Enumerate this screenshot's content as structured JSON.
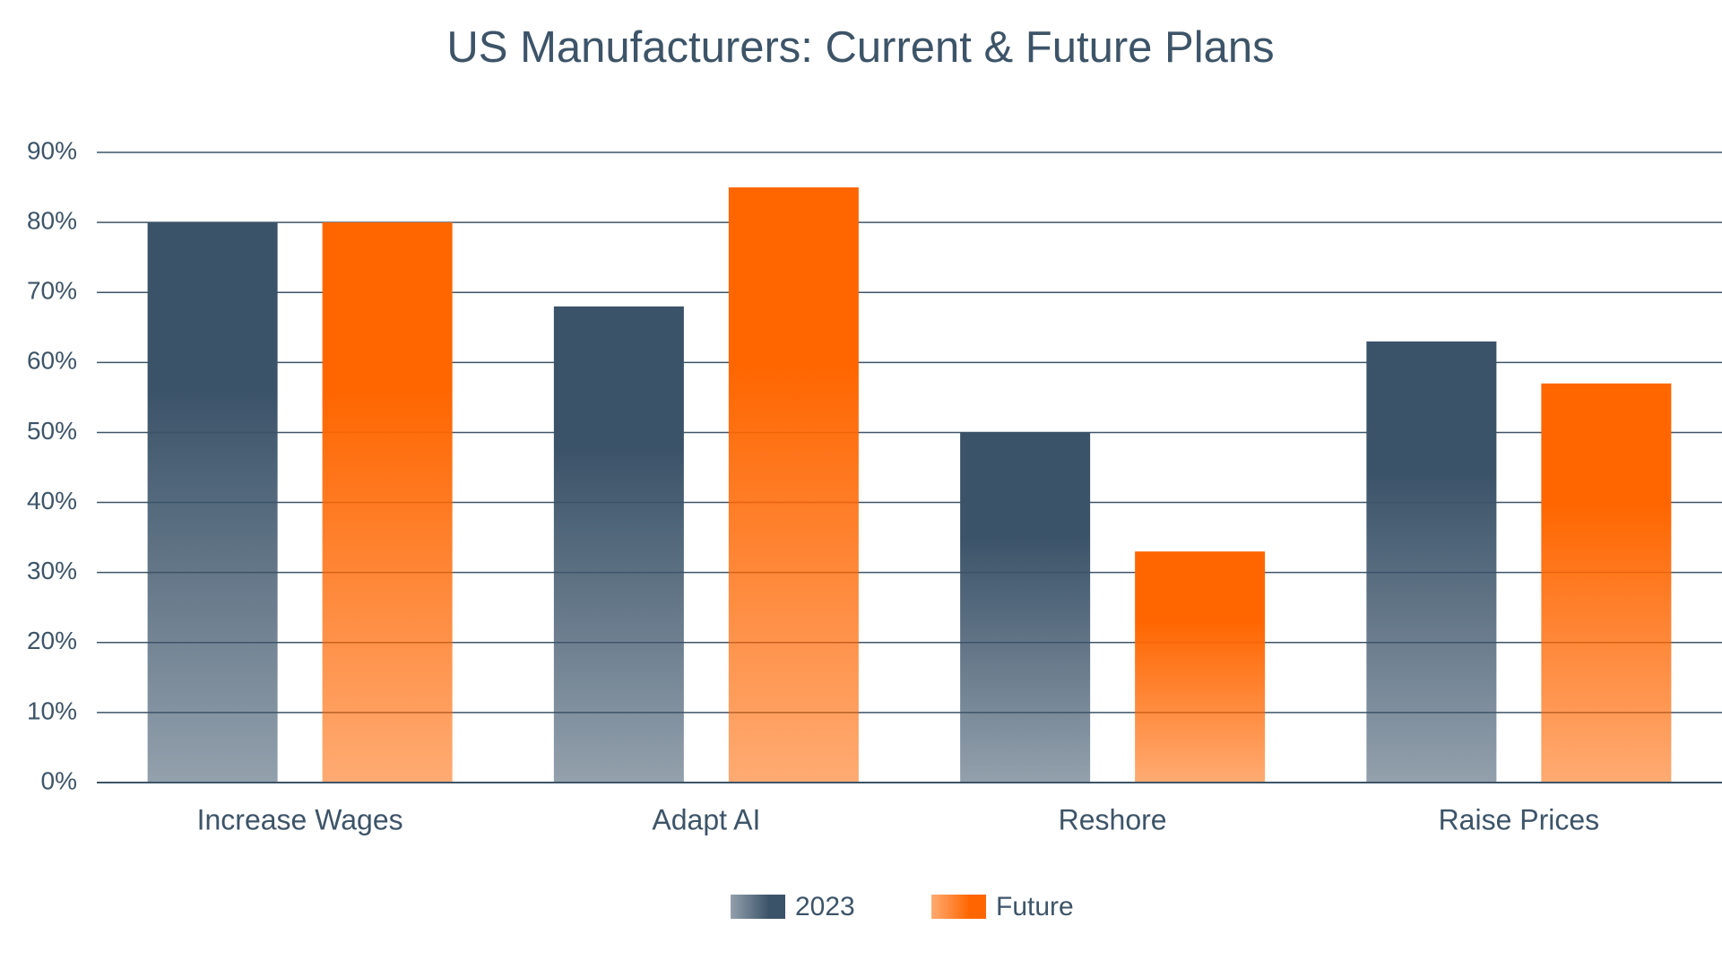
{
  "chart_data": {
    "type": "bar",
    "title": "US Manufacturers: Current & Future Plans",
    "categories": [
      "Increase Wages",
      "Adapt AI",
      "Reshore",
      "Raise Prices"
    ],
    "series": [
      {
        "name": "2023",
        "color": "#3b5369",
        "values": [
          80,
          68,
          50,
          63
        ]
      },
      {
        "name": "Future",
        "color": "#ff6600",
        "values": [
          80,
          85,
          33,
          57
        ]
      }
    ],
    "ylim": [
      0,
      90
    ],
    "yticks": [
      {
        "value": 0,
        "label": "0%"
      },
      {
        "value": 10,
        "label": "10%"
      },
      {
        "value": 20,
        "label": "20%"
      },
      {
        "value": 30,
        "label": "30%"
      },
      {
        "value": 40,
        "label": "40%"
      },
      {
        "value": 50,
        "label": "50%"
      },
      {
        "value": 60,
        "label": "60%"
      },
      {
        "value": 70,
        "label": "70%"
      },
      {
        "value": 80,
        "label": "80%"
      },
      {
        "value": 90,
        "label": "90%"
      }
    ],
    "grid": true,
    "legend": "bottom"
  }
}
